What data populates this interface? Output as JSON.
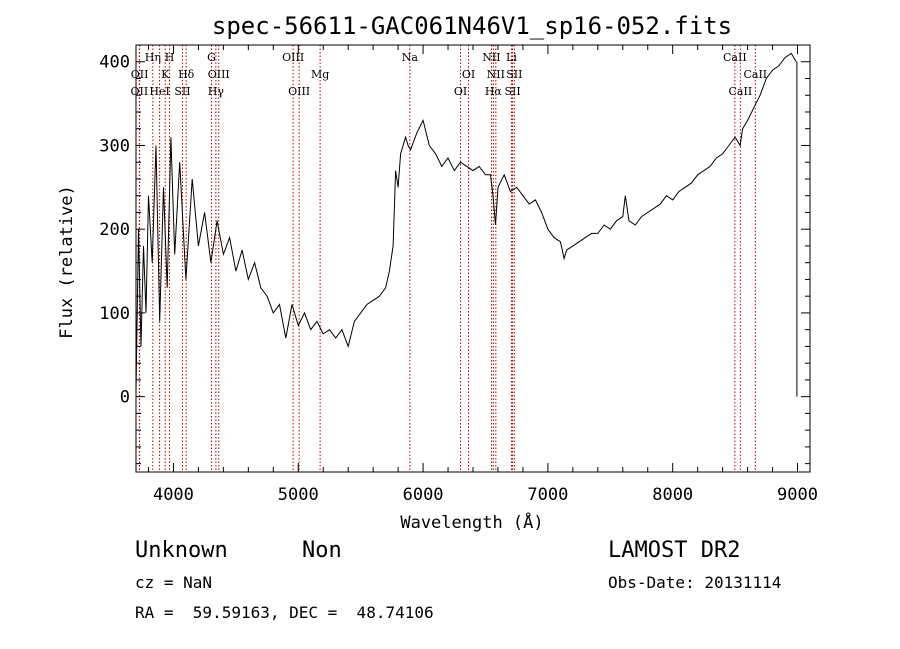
{
  "chart_data": {
    "type": "line",
    "title": "spec-56611-GAC061N46V1_sp16-052.fits",
    "xlabel": "Wavelength (Å)",
    "ylabel": "Flux (relative)",
    "xlim": [
      3700,
      9100
    ],
    "ylim": [
      -90,
      420
    ],
    "xticks": [
      4000,
      5000,
      6000,
      7000,
      8000,
      9000
    ],
    "yticks": [
      0,
      100,
      200,
      300,
      400
    ],
    "grid": false,
    "series": [
      {
        "x": [
          3700,
          3720,
          3740,
          3760,
          3780,
          3800,
          3830,
          3860,
          3890,
          3920,
          3950,
          3980,
          4010,
          4050,
          4100,
          4150,
          4200,
          4250,
          4300,
          4350,
          4400,
          4450,
          4500,
          4550,
          4600,
          4650,
          4700,
          4750,
          4800,
          4850,
          4900,
          4950,
          5000,
          5050,
          5100,
          5150,
          5200,
          5250,
          5300,
          5350,
          5400,
          5450,
          5500,
          5550,
          5600,
          5650,
          5700,
          5730,
          5760,
          5780,
          5800,
          5820,
          5840,
          5860,
          5880,
          5900,
          5950,
          6000,
          6050,
          6100,
          6150,
          6200,
          6250,
          6300,
          6350,
          6400,
          6450,
          6500,
          6540,
          6560,
          6580,
          6600,
          6650,
          6700,
          6750,
          6800,
          6850,
          6900,
          6950,
          7000,
          7050,
          7100,
          7130,
          7150,
          7200,
          7250,
          7300,
          7350,
          7400,
          7450,
          7500,
          7550,
          7600,
          7620,
          7650,
          7700,
          7750,
          7800,
          7850,
          7900,
          7950,
          8000,
          8050,
          8100,
          8150,
          8200,
          8250,
          8300,
          8350,
          8400,
          8450,
          8500,
          8540,
          8560,
          8600,
          8650,
          8700,
          8750,
          8800,
          8850,
          8900,
          8950,
          8990
        ],
        "y": [
          5,
          200,
          60,
          180,
          100,
          240,
          160,
          300,
          90,
          250,
          130,
          310,
          170,
          280,
          140,
          260,
          180,
          220,
          160,
          210,
          170,
          190,
          150,
          175,
          140,
          160,
          130,
          120,
          100,
          110,
          70,
          110,
          85,
          100,
          80,
          90,
          75,
          80,
          70,
          80,
          60,
          90,
          100,
          110,
          115,
          120,
          130,
          150,
          180,
          270,
          250,
          290,
          300,
          310,
          300,
          295,
          315,
          330,
          300,
          290,
          275,
          285,
          270,
          280,
          275,
          270,
          275,
          265,
          265,
          240,
          205,
          250,
          265,
          245,
          250,
          240,
          230,
          235,
          220,
          200,
          190,
          185,
          165,
          175,
          180,
          185,
          190,
          195,
          195,
          205,
          200,
          210,
          215,
          240,
          210,
          205,
          215,
          220,
          225,
          230,
          240,
          235,
          245,
          250,
          255,
          265,
          270,
          275,
          285,
          290,
          300,
          310,
          300,
          320,
          330,
          345,
          360,
          380,
          390,
          395,
          405,
          410,
          400
        ]
      },
      {
        "x": [
          8995,
          8995
        ],
        "y": [
          0,
          400
        ]
      }
    ],
    "line_ids": [
      {
        "label": "OII",
        "x": 3727,
        "row": 3
      },
      {
        "label": "OII",
        "x": 3729,
        "row": 2
      },
      {
        "label": "Hη",
        "x": 3835,
        "row": 1
      },
      {
        "label": "HeI",
        "x": 3889,
        "row": 3
      },
      {
        "label": "K",
        "x": 3934,
        "row": 2
      },
      {
        "label": "H",
        "x": 3969,
        "row": 1
      },
      {
        "label": "SII",
        "x": 4072,
        "row": 3
      },
      {
        "label": "Hδ",
        "x": 4102,
        "row": 2
      },
      {
        "label": "G",
        "x": 4305,
        "row": 1
      },
      {
        "label": "Hγ",
        "x": 4340,
        "row": 3
      },
      {
        "label": "OIII",
        "x": 4363,
        "row": 2
      },
      {
        "label": "OIII",
        "x": 4959,
        "row": 1
      },
      {
        "label": "OIII",
        "x": 5007,
        "row": 3
      },
      {
        "label": "Mg",
        "x": 5175,
        "row": 2
      },
      {
        "label": "Na",
        "x": 5894,
        "row": 1
      },
      {
        "label": "OI",
        "x": 6300,
        "row": 3
      },
      {
        "label": "OI",
        "x": 6364,
        "row": 2
      },
      {
        "label": "NII",
        "x": 6548,
        "row": 1
      },
      {
        "label": "Hα",
        "x": 6563,
        "row": 3
      },
      {
        "label": "NII",
        "x": 6583,
        "row": 2
      },
      {
        "label": "Li",
        "x": 6708,
        "row": 1
      },
      {
        "label": "SII",
        "x": 6717,
        "row": 3
      },
      {
        "label": "SII",
        "x": 6731,
        "row": 2
      },
      {
        "label": "CaII",
        "x": 8498,
        "row": 1
      },
      {
        "label": "CaII",
        "x": 8542,
        "row": 3
      },
      {
        "label": "CaII",
        "x": 8662,
        "row": 2
      }
    ]
  },
  "info": {
    "class": "Unknown",
    "subclass": "Non",
    "survey": "LAMOST DR2",
    "cz": "cz = NaN",
    "obs_date": "Obs-Date: 20131114",
    "coords": "RA =  59.59163, DEC =  48.74106"
  },
  "colors": {
    "line_marker": "#b00000",
    "spectrum": "#000000"
  }
}
